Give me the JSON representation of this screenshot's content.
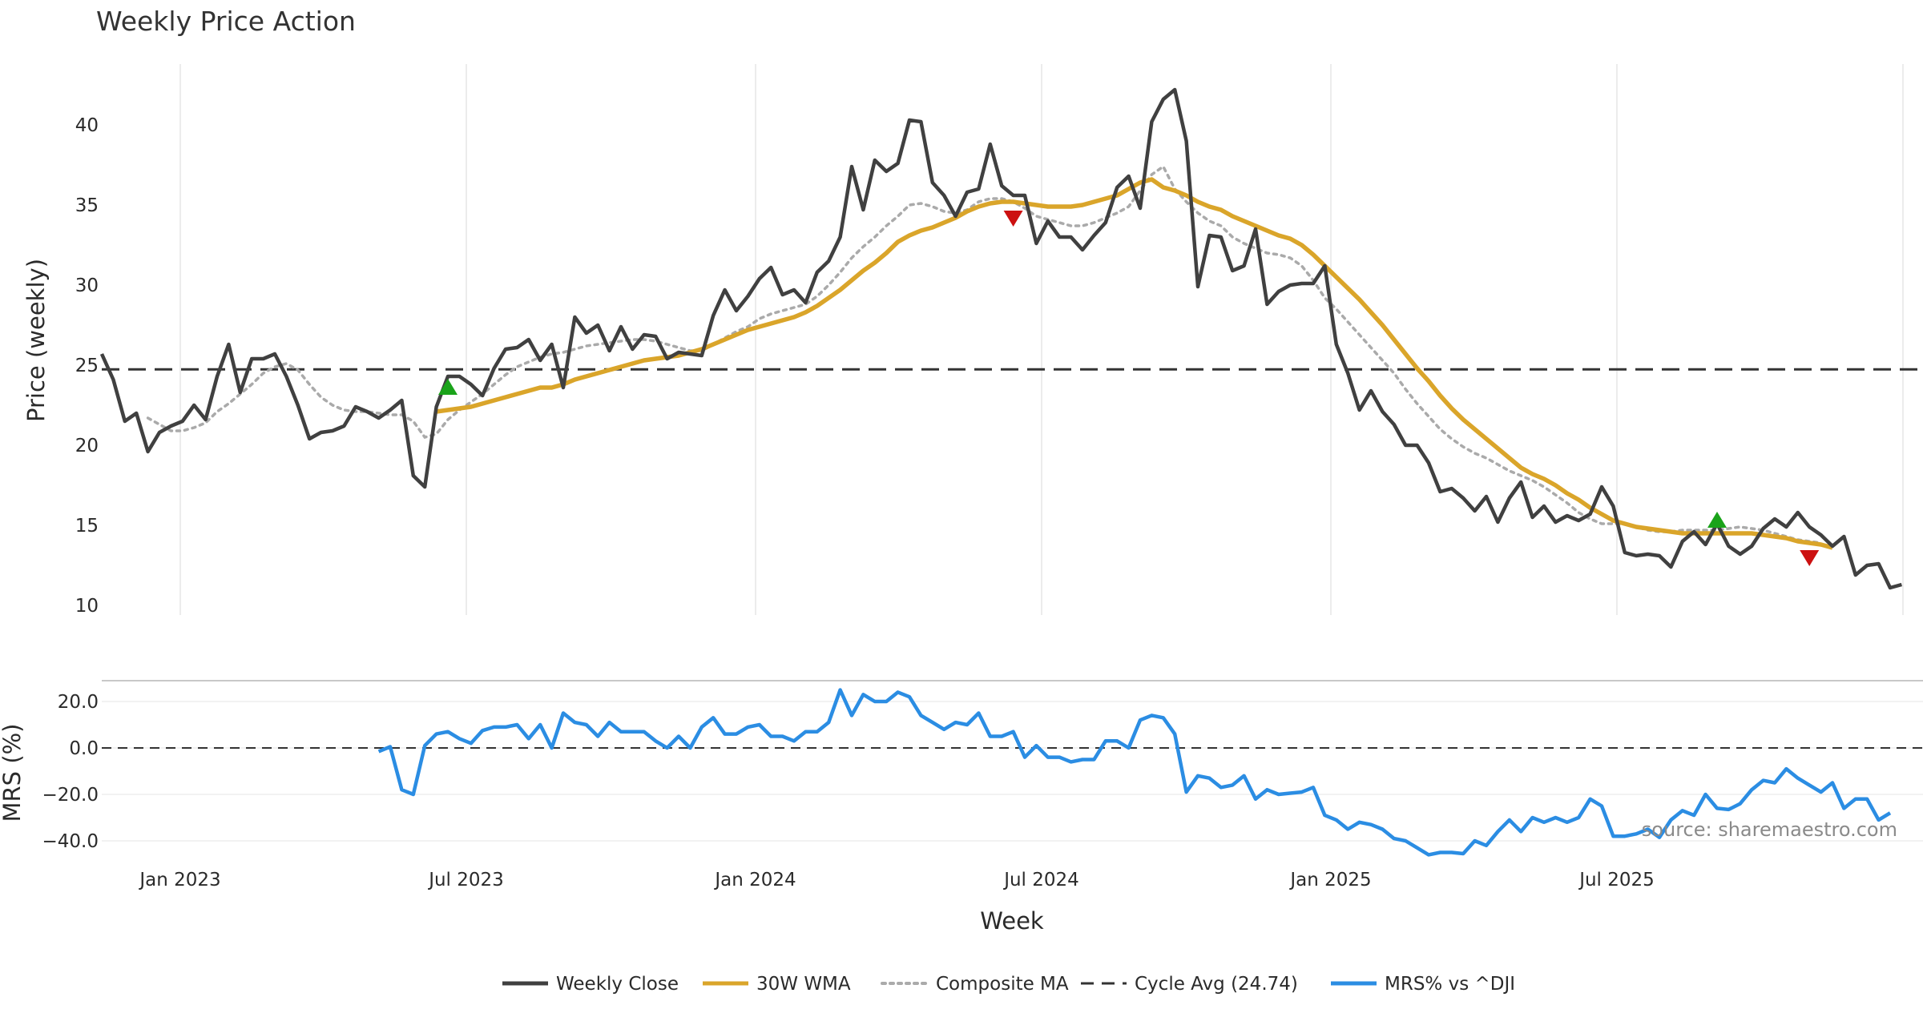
{
  "chart_data": [
    {
      "type": "line",
      "title": "Weekly Price Action",
      "xlabel": "",
      "ylabel": "Price (weekly)",
      "ylim": [
        9,
        43.5
      ],
      "yticks": [
        10,
        15,
        20,
        25,
        30,
        35,
        40
      ],
      "x_tick_labels": [
        "Jan 2023",
        "Jul 2023",
        "Jan 2024",
        "Jul 2024",
        "Jan 2025",
        "Jul 2025"
      ],
      "cycle_avg": 24.74,
      "series": [
        {
          "name": "Weekly Close",
          "color": "#404040",
          "values": [
            25.7,
            24.1,
            21.5,
            22.0,
            19.6,
            20.8,
            21.2,
            21.5,
            22.5,
            21.6,
            24.3,
            26.3,
            23.3,
            25.4,
            25.4,
            25.7,
            24.3,
            22.5,
            20.4,
            20.8,
            20.9,
            21.2,
            22.4,
            22.1,
            21.7,
            22.2,
            22.8,
            18.1,
            17.4,
            22.4,
            24.3,
            24.3,
            23.8,
            23.1,
            24.8,
            26.0,
            26.1,
            26.6,
            25.3,
            26.3,
            23.6,
            28.0,
            27.0,
            27.5,
            25.9,
            27.4,
            26.0,
            26.9,
            26.8,
            25.4,
            25.8,
            25.7,
            25.6,
            28.1,
            29.7,
            28.4,
            29.3,
            30.4,
            31.1,
            29.4,
            29.7,
            28.9,
            30.8,
            31.5,
            33.0,
            37.4,
            34.7,
            37.8,
            37.1,
            37.6,
            40.3,
            40.2,
            36.4,
            35.6,
            34.3,
            35.8,
            36.0,
            38.8,
            36.2,
            35.6,
            35.6,
            32.6,
            34.0,
            33.0,
            33.0,
            32.2,
            33.1,
            33.9,
            36.1,
            36.8,
            34.8,
            40.2,
            41.6,
            42.2,
            39.0,
            29.9,
            33.1,
            33.0,
            30.9,
            31.2,
            33.5,
            28.8,
            29.6,
            30.0,
            30.1,
            30.1,
            31.2,
            26.3,
            24.5,
            22.2,
            23.4,
            22.1,
            21.3,
            20.0,
            20.0,
            18.9,
            17.1,
            17.3,
            16.7,
            15.9,
            16.8,
            15.2,
            16.7,
            17.7,
            15.5,
            16.2,
            15.2,
            15.6,
            15.3,
            15.7,
            17.4,
            16.2,
            13.3,
            13.1,
            13.2,
            13.1,
            12.4,
            14.0,
            14.6,
            13.8,
            15.1,
            13.7,
            13.2,
            13.7,
            14.8,
            15.4,
            14.9,
            15.8,
            14.9,
            14.4,
            13.7,
            14.3,
            11.9,
            12.5,
            12.6,
            11.1,
            11.3
          ]
        },
        {
          "name": "30W WMA",
          "color": "#DAA52A",
          "values": [
            null,
            null,
            null,
            null,
            null,
            null,
            null,
            null,
            null,
            null,
            null,
            null,
            null,
            null,
            null,
            null,
            null,
            null,
            null,
            null,
            null,
            null,
            null,
            null,
            null,
            null,
            null,
            null,
            null,
            22.1,
            22.2,
            22.3,
            22.4,
            22.6,
            22.8,
            23.0,
            23.2,
            23.4,
            23.6,
            23.6,
            23.8,
            24.1,
            24.3,
            24.5,
            24.7,
            24.9,
            25.1,
            25.3,
            25.4,
            25.5,
            25.6,
            25.8,
            26.0,
            26.3,
            26.6,
            26.9,
            27.2,
            27.4,
            27.6,
            27.8,
            28.0,
            28.3,
            28.7,
            29.2,
            29.7,
            30.3,
            30.9,
            31.4,
            32.0,
            32.7,
            33.1,
            33.4,
            33.6,
            33.9,
            34.2,
            34.6,
            34.9,
            35.1,
            35.2,
            35.2,
            35.1,
            35.0,
            34.9,
            34.9,
            34.9,
            35.0,
            35.2,
            35.4,
            35.6,
            36.0,
            36.4,
            36.6,
            36.1,
            35.9,
            35.6,
            35.2,
            34.9,
            34.7,
            34.3,
            34.0,
            33.7,
            33.4,
            33.1,
            32.9,
            32.5,
            31.9,
            31.2,
            30.5,
            29.8,
            29.1,
            28.3,
            27.5,
            26.6,
            25.7,
            24.8,
            24.0,
            23.1,
            22.3,
            21.6,
            21.0,
            20.4,
            19.8,
            19.2,
            18.6,
            18.2,
            17.9,
            17.5,
            17.0,
            16.6,
            16.1,
            15.7,
            15.3,
            15.1,
            14.9,
            14.8,
            14.7,
            14.6,
            14.5,
            14.5,
            14.5,
            14.5,
            14.5,
            14.5,
            14.5,
            14.4,
            14.3,
            14.2,
            14.0,
            13.9,
            13.8,
            13.6
          ]
        },
        {
          "name": "Composite MA",
          "color": "#aaaaaa",
          "values": [
            null,
            null,
            null,
            null,
            21.7,
            21.3,
            20.9,
            20.9,
            21.1,
            21.4,
            22.1,
            22.6,
            23.2,
            23.8,
            24.5,
            24.9,
            25.1,
            24.7,
            23.8,
            23.0,
            22.5,
            22.2,
            22.1,
            22.1,
            22.0,
            21.9,
            21.9,
            21.5,
            20.5,
            20.7,
            21.6,
            22.2,
            22.7,
            23.2,
            23.8,
            24.4,
            24.9,
            25.2,
            25.5,
            25.7,
            25.8,
            26.0,
            26.2,
            26.3,
            26.4,
            26.5,
            26.6,
            26.6,
            26.5,
            26.3,
            26.1,
            25.9,
            25.9,
            26.3,
            26.7,
            27.1,
            27.4,
            27.9,
            28.2,
            28.4,
            28.6,
            28.8,
            29.3,
            30.0,
            30.8,
            31.7,
            32.4,
            33.0,
            33.7,
            34.3,
            35.0,
            35.1,
            34.9,
            34.6,
            34.5,
            34.7,
            35.2,
            35.4,
            35.4,
            35.2,
            34.8,
            34.3,
            34.1,
            33.9,
            33.7,
            33.7,
            33.9,
            34.2,
            34.5,
            34.9,
            35.9,
            36.9,
            37.4,
            36.0,
            35.2,
            34.5,
            34.0,
            33.7,
            33.0,
            32.6,
            32.3,
            32.0,
            31.9,
            31.7,
            31.2,
            30.3,
            29.2,
            28.5,
            27.7,
            26.9,
            26.1,
            25.3,
            24.5,
            23.5,
            22.6,
            21.8,
            21.0,
            20.4,
            19.9,
            19.5,
            19.2,
            18.8,
            18.4,
            18.1,
            17.8,
            17.4,
            16.9,
            16.4,
            15.8,
            15.4,
            15.1,
            15.1,
            15.1,
            14.9,
            14.7,
            14.6,
            14.6,
            14.7,
            14.7,
            14.7,
            14.7,
            14.8,
            14.9,
            14.8,
            14.7,
            14.5,
            14.3,
            14.1,
            14.0,
            13.9
          ]
        },
        {
          "name": "Cycle Avg (24.74)",
          "color": "#333333"
        }
      ],
      "signals": [
        {
          "type": "buy",
          "x": 30,
          "y": 23.6,
          "color": "#1aa31a"
        },
        {
          "type": "sell",
          "x": 79,
          "y": 34.2,
          "color": "#cc1111"
        },
        {
          "type": "buy",
          "x": 140,
          "y": 15.3,
          "color": "#1aa31a"
        },
        {
          "type": "sell",
          "x": 148,
          "y": 13.0,
          "color": "#cc1111"
        }
      ]
    },
    {
      "type": "line",
      "title": "",
      "xlabel": "Week",
      "ylabel": "MRS (%)",
      "ylim": [
        -48,
        26
      ],
      "yticks": [
        -40.0,
        -20.0,
        0.0,
        20.0
      ],
      "x_tick_labels": [
        "Jan 2023",
        "Jul 2023",
        "Jan 2024",
        "Jul 2024",
        "Jan 2025",
        "Jul 2025"
      ],
      "series": [
        {
          "name": "MRS% vs ^DJI",
          "color": "#2b8de3",
          "start_index": 24,
          "values": [
            -1.5,
            0.5,
            -18.0,
            -20.0,
            1.0,
            6.0,
            7.0,
            4.0,
            2.0,
            7.5,
            9.0,
            9.0,
            10.0,
            4.0,
            10.0,
            0.0,
            15.0,
            11.0,
            10.0,
            5.0,
            11.0,
            7.0,
            7.0,
            7.0,
            3.0,
            0.0,
            5.0,
            0.0,
            9.0,
            13.0,
            6.0,
            6.0,
            9.0,
            10.0,
            5.0,
            5.0,
            3.0,
            7.0,
            7.0,
            11.0,
            25.0,
            14.0,
            23.0,
            20.0,
            20.0,
            24.0,
            22.0,
            14.0,
            11.0,
            8.0,
            11.0,
            10.0,
            15.0,
            5.0,
            5.0,
            7.0,
            -4.0,
            1.0,
            -4.0,
            -4.0,
            -6.0,
            -5.0,
            -5.0,
            3.0,
            3.0,
            0.0,
            12.0,
            14.0,
            13.0,
            6.0,
            -19.0,
            -12.0,
            -13.0,
            -17.0,
            -16.0,
            -12.0,
            -22.0,
            -18.0,
            -20.0,
            -19.5,
            -19.0,
            -17.0,
            -29.0,
            -31.0,
            -35.0,
            -32.0,
            -33.0,
            -35.0,
            -39.0,
            -40.0,
            -43.0,
            -46.0,
            -45.0,
            -45.0,
            -45.5,
            -40.0,
            -42.0,
            -36.0,
            -31.0,
            -36.0,
            -30.0,
            -32.0,
            -30.0,
            -32.0,
            -30.0,
            -22.0,
            -25.0,
            -38.0,
            -38.0,
            -37.0,
            -35.0,
            -38.5,
            -31.0,
            -27.0,
            -29.0,
            -20.0,
            -26.0,
            -26.5,
            -24.0,
            -18.0,
            -14.0,
            -15.0,
            -9.0,
            -13.0,
            -16.0,
            -19.0,
            -15.0,
            -26.0,
            -22.0,
            -22.0,
            -31.0,
            -28.0
          ]
        }
      ]
    }
  ],
  "legend": [
    {
      "label": "Weekly Close",
      "style": "solid",
      "color": "#404040"
    },
    {
      "label": "30W WMA",
      "style": "solid",
      "color": "#DAA52A"
    },
    {
      "label": "Composite MA",
      "style": "dotted",
      "color": "#aaaaaa"
    },
    {
      "label": "Cycle Avg (24.74)",
      "style": "dashed",
      "color": "#333333"
    },
    {
      "label": "MRS% vs ^DJI",
      "style": "solid",
      "color": "#2b8de3"
    }
  ],
  "source_text": "source: sharemaestro.com"
}
